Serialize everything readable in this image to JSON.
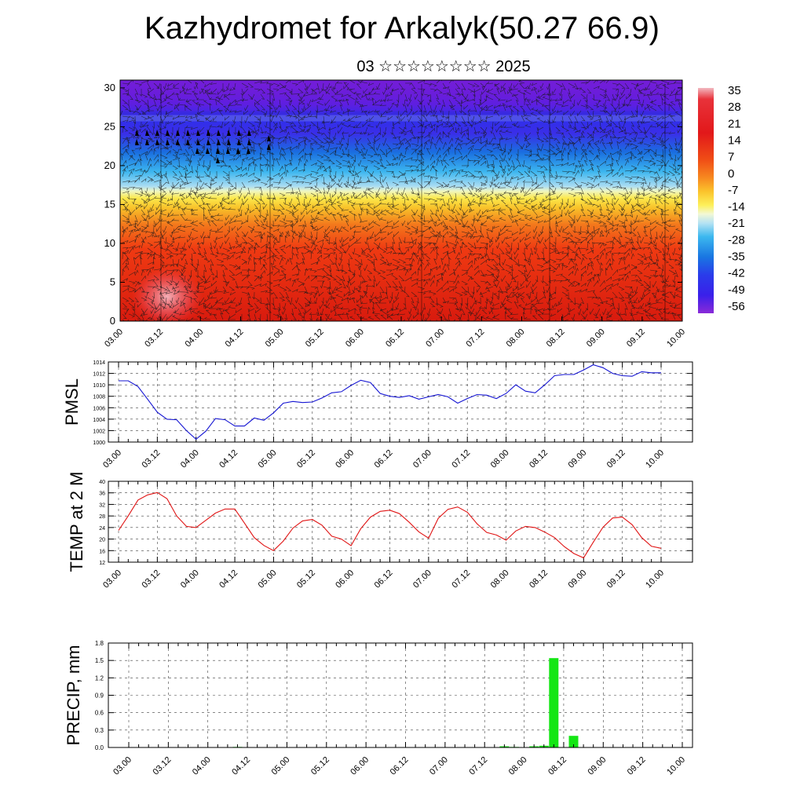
{
  "title": "Kazhydromet for Arkalyk(50.27 66.9)",
  "subtitle": "03 ☆☆☆☆☆☆☆☆ 2025",
  "colors": {
    "pmsl_line": "#1414d2",
    "temp_line": "#e01414",
    "precip_bar": "#14e614",
    "grid": "#000000"
  },
  "chart_data": [
    {
      "type": "heatmap",
      "name": "vertical-cross-section",
      "x_ticks": [
        "03.00",
        "03.12",
        "04.00",
        "04.12",
        "05.00",
        "05.12",
        "06.00",
        "06.12",
        "07.00",
        "07.12",
        "08.00",
        "08.12",
        "09.00",
        "09.12",
        "10.00"
      ],
      "y_ticks": [
        0,
        5,
        10,
        15,
        20,
        25,
        30
      ],
      "ylim": [
        0,
        31
      ],
      "colorbar": {
        "labels": [
          "35",
          "28",
          "21",
          "14",
          "7",
          "0",
          "-7",
          "-14",
          "-21",
          "-28",
          "-35",
          "-42",
          "-49",
          "-56"
        ],
        "range": [
          -63,
          38
        ]
      }
    },
    {
      "type": "line",
      "name": "pmsl",
      "ylabel": "PMSL",
      "x_ticks": [
        "03.00",
        "03.12",
        "04.00",
        "04.12",
        "05.00",
        "05.12",
        "06.00",
        "06.12",
        "07.00",
        "07.12",
        "08.00",
        "08.12",
        "09.00",
        "09.12",
        "10.00"
      ],
      "y_ticks": [
        1000,
        1002,
        1004,
        1006,
        1008,
        1010,
        1012,
        1014
      ],
      "ylim": [
        1000,
        1014
      ],
      "x_hours_start": 0,
      "step_hours": 3,
      "values": [
        1010.7,
        1010.7,
        1009.7,
        1007.5,
        1005.2,
        1004.0,
        1003.9,
        1002.0,
        1000.5,
        1001.9,
        1004.1,
        1003.9,
        1002.8,
        1002.8,
        1004.2,
        1003.8,
        1005.1,
        1006.8,
        1007.1,
        1006.9,
        1007.0,
        1007.7,
        1008.6,
        1008.8,
        1009.9,
        1010.8,
        1010.4,
        1008.5,
        1008.0,
        1007.8,
        1008.1,
        1007.5,
        1007.9,
        1008.3,
        1007.9,
        1006.8,
        1007.6,
        1008.3,
        1008.2,
        1007.6,
        1008.5,
        1010.0,
        1008.9,
        1008.6,
        1010.0,
        1011.6,
        1011.8,
        1011.8,
        1012.6,
        1013.5,
        1013.0,
        1012.0,
        1011.6,
        1011.5,
        1012.3,
        1012.1,
        1012.1
      ]
    },
    {
      "type": "line",
      "name": "temp-2m",
      "ylabel": "TEMP at 2 M",
      "x_ticks": [
        "03.00",
        "03.12",
        "04.00",
        "04.12",
        "05.00",
        "05.12",
        "06.00",
        "06.12",
        "07.00",
        "07.12",
        "08.00",
        "08.12",
        "09.00",
        "09.12",
        "10.00"
      ],
      "y_ticks": [
        12,
        16,
        20,
        24,
        28,
        32,
        36,
        40
      ],
      "ylim": [
        12,
        40
      ],
      "x_hours_start": 0,
      "step_hours": 3,
      "values": [
        23.0,
        28.0,
        33.5,
        35.3,
        36.1,
        34.0,
        28.0,
        24.4,
        24.0,
        26.5,
        29.0,
        30.4,
        30.4,
        25.5,
        20.5,
        17.8,
        16.0,
        19.3,
        23.8,
        26.3,
        26.8,
        24.8,
        21.0,
        20.0,
        17.7,
        23.6,
        27.6,
        29.6,
        30.0,
        28.8,
        25.8,
        22.5,
        20.3,
        27.2,
        30.3,
        31.1,
        29.3,
        25.3,
        22.3,
        21.4,
        19.6,
        22.8,
        24.4,
        24.0,
        22.4,
        20.5,
        17.4,
        15.0,
        13.5,
        18.9,
        24.1,
        27.3,
        27.6,
        25.0,
        20.5,
        17.5,
        16.8
      ]
    },
    {
      "type": "bar",
      "name": "precip",
      "ylabel": "PRECIP, mm",
      "x_ticks": [
        "03.00",
        "03.12",
        "04.00",
        "04.12",
        "05.00",
        "05.12",
        "06.00",
        "06.12",
        "07.00",
        "07.12",
        "08.00",
        "08.12",
        "09.00",
        "09.12",
        "10.00"
      ],
      "y_ticks": [
        "0.0",
        "0.3",
        "0.6",
        "0.9",
        "1.2",
        "1.5",
        "1.8"
      ],
      "ylim": [
        0,
        1.8
      ],
      "bars": [
        {
          "hour": 33,
          "value": 0.01
        },
        {
          "hour": 114,
          "value": 0.02
        },
        {
          "hour": 117,
          "value": 0.01
        },
        {
          "hour": 123,
          "value": 0.02
        },
        {
          "hour": 126,
          "value": 0.03
        },
        {
          "hour": 129,
          "value": 1.54
        },
        {
          "hour": 135,
          "value": 0.2
        }
      ]
    }
  ]
}
